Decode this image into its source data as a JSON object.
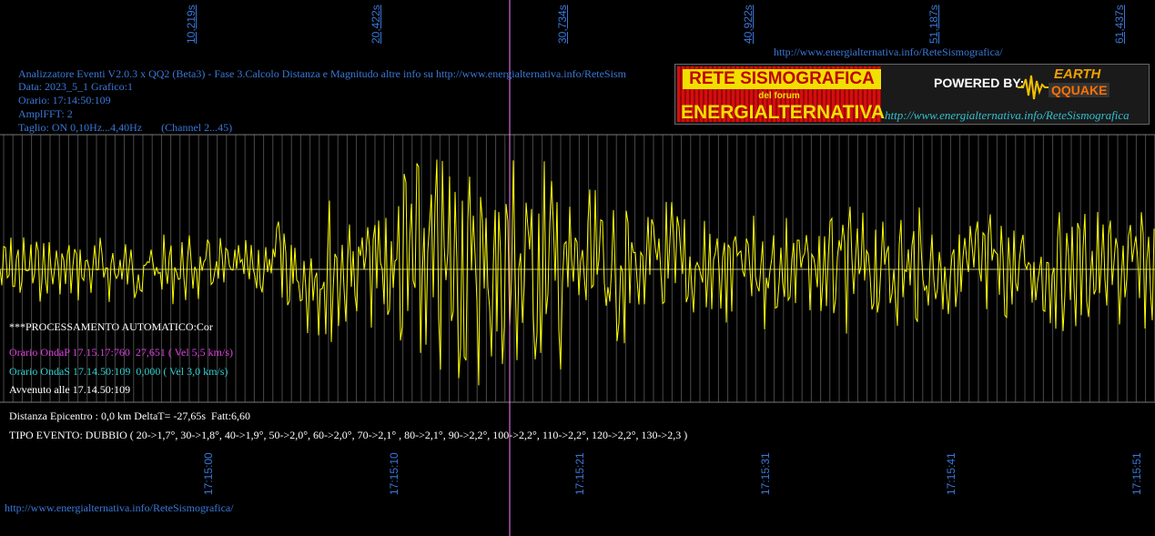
{
  "window": {
    "top_url": "http://www.energialternativa.info/ReteSismografica/",
    "bottom_url": "http://www.energialternativa.info/ReteSismografica/"
  },
  "top_axis": {
    "labels": [
      "10,219s",
      "20,422s",
      "30,734s",
      "40,922s",
      "51,187s",
      "61,437s"
    ]
  },
  "bottom_axis": {
    "labels": [
      "17:15:00",
      "17:15:10",
      "17:15:21",
      "17:15:31",
      "17:15:41",
      "17:15:51"
    ]
  },
  "header": {
    "line1": "Analizzatore Eventi V2.0.3 x QQ2 (Beta3) - Fase 3.Calcolo Distanza e Magnitudo altre info su http://www.energialternativa.info/ReteSism",
    "line2": "Data: 2023_5_1 Grafico:1",
    "line3": "Orario: 17:14:50:109",
    "line4": "AmplFFT: 2",
    "line5": "Taglio: ON 0,10Hz...4,40Hz       (Channel 2...45)"
  },
  "banner": {
    "title": "RETE SISMOGRAFICA",
    "subtitle": "del forum",
    "name": "ENERGIALTERNATIVA",
    "powered": "POWERED BY:",
    "earth": "EARTH",
    "qquake": "QQUAKE",
    "url": "http://www.energialternativa.info/ReteSismografica"
  },
  "analysis": {
    "processing": "***PROCESSAMENTO AUTOMATICO:Cor",
    "onda_p": "Orario OndaP 17.15.17:760  27,651 ( Vel 5,5 km/s)",
    "onda_s": "Orario OndaS 17.14.50:109  0,000 ( Vel 3,0 km/s)",
    "avvenuto": "Avvenuto alle 17.14.50:109",
    "distanza": "Distanza Epicentro : 0,0 km DeltaT= -27,65s  Fatt:6,60",
    "tipo": "TIPO EVENTO: DUBBIO ( 20->1,7°, 30->1,8°, 40->1,9°, 50->2,0°, 60->2,0°, 70->2,1° , 80->2,1°, 90->2,2°, 100->2,2°, 110->2,2°, 120->2,2°, 130->2,3 )"
  },
  "colors": {
    "background": "#000000",
    "trace": "#ffff00",
    "grid": "#7a7a7a",
    "marker": "#ff80ff",
    "label_blue": "#3a78d8",
    "onda_p": "#e040e0",
    "onda_s": "#30d0d0"
  }
}
